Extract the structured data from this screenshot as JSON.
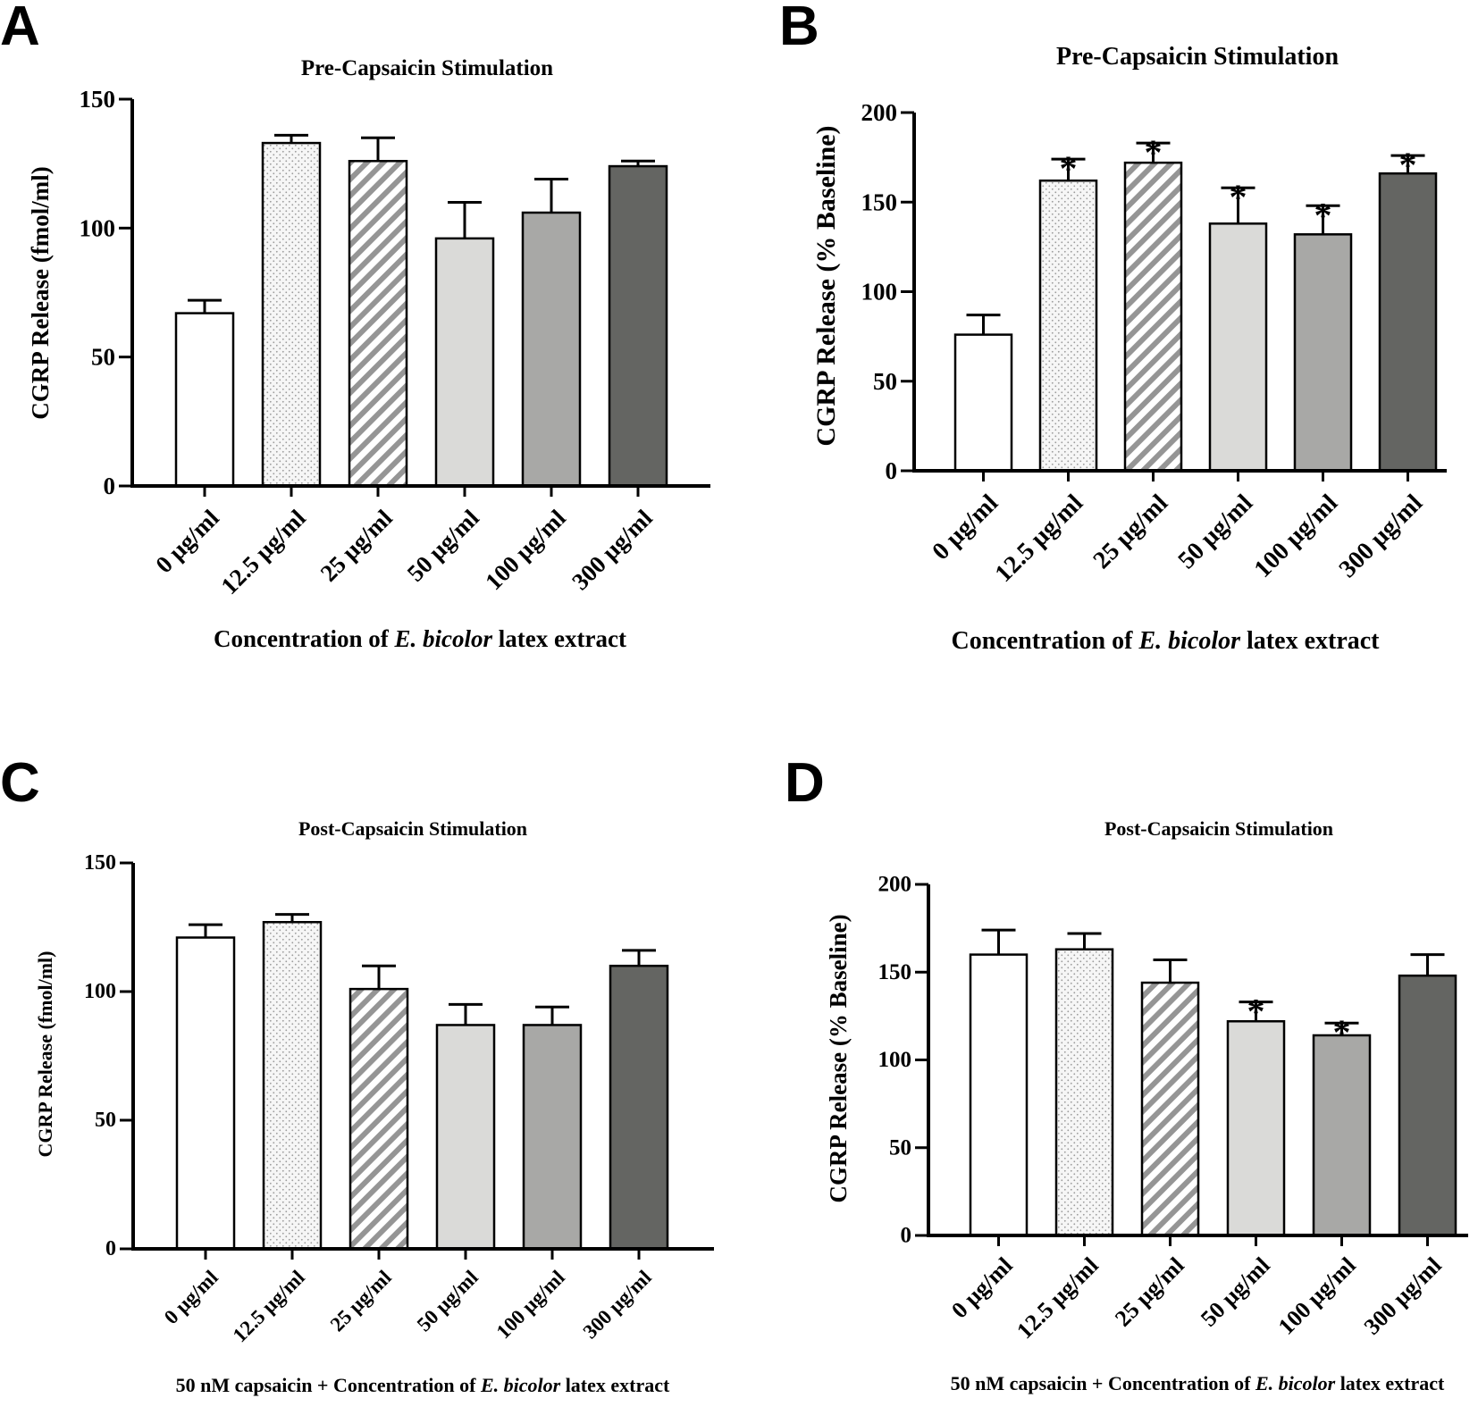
{
  "chart_data": [
    {
      "type": "bar",
      "panel_label": "A",
      "title": "Pre-Capsaicin Stimulation",
      "ylabel": "CGRP Release (fmol/ml)",
      "xlabel": {
        "pre": "Concentration of ",
        "italic": "E. bicolor",
        "post": " latex extract"
      },
      "ylim": [
        0,
        150
      ],
      "yticks": [
        "0",
        "50",
        "100",
        "150"
      ],
      "categories": [
        "0 µg/ml",
        "12.5 µg/ml",
        "25 µg/ml",
        "50 µg/ml",
        "100 µg/ml",
        "300 µg/ml"
      ],
      "values": [
        67,
        133,
        126,
        96,
        106,
        124
      ],
      "errors": [
        5,
        3,
        9,
        14,
        13,
        2
      ],
      "significance": [
        "",
        "",
        "",
        "",
        "",
        ""
      ]
    },
    {
      "type": "bar",
      "panel_label": "B",
      "title": "Pre-Capsaicin Stimulation",
      "ylabel": "CGRP Release (% Baseline)",
      "xlabel": {
        "pre": "Concentration of ",
        "italic": "E. bicolor",
        "post": " latex extract"
      },
      "ylim": [
        0,
        200
      ],
      "yticks": [
        "0",
        "50",
        "100",
        "150",
        "200"
      ],
      "categories": [
        "0 µg/ml",
        "12.5 µg/ml",
        "25 µg/ml",
        "50 µg/ml",
        "100 µg/ml",
        "300 µg/ml"
      ],
      "values": [
        76,
        162,
        172,
        138,
        132,
        166
      ],
      "errors": [
        11,
        12,
        11,
        20,
        16,
        10
      ],
      "significance": [
        "",
        "*",
        "*",
        "*",
        "*",
        "*"
      ]
    },
    {
      "type": "bar",
      "panel_label": "C",
      "title": "Post-Capsaicin Stimulation",
      "ylabel": "CGRP Release (fmol/ml)",
      "xlabel": {
        "pre": "50 nM capsaicin + Concentration of ",
        "italic": "E. bicolor",
        "post": " latex extract"
      },
      "ylim": [
        0,
        150
      ],
      "yticks": [
        "0",
        "50",
        "100",
        "150"
      ],
      "categories": [
        "0 µg/ml",
        "12.5 µg/ml",
        "25 µg/ml",
        "50 µg/ml",
        "100 µg/ml",
        "300 µg/ml"
      ],
      "values": [
        121,
        127,
        101,
        87,
        87,
        110
      ],
      "errors": [
        5,
        3,
        9,
        8,
        7,
        6
      ],
      "significance": [
        "",
        "",
        "",
        "",
        "",
        ""
      ]
    },
    {
      "type": "bar",
      "panel_label": "D",
      "title": "Post-Capsaicin Stimulation",
      "ylabel": "CGRP Release (% Baseline)",
      "xlabel": {
        "pre": "50 nM capsaicin + Concentration of ",
        "italic": "E. bicolor",
        "post": " latex extract"
      },
      "ylim": [
        0,
        200
      ],
      "yticks": [
        "0",
        "50",
        "100",
        "150",
        "200"
      ],
      "categories": [
        "0 µg/ml",
        "12.5 µg/ml",
        "25 µg/ml",
        "50 µg/ml",
        "100 µg/ml",
        "300 µg/ml"
      ],
      "values": [
        160,
        163,
        144,
        122,
        114,
        148
      ],
      "errors": [
        14,
        9,
        13,
        11,
        7,
        12
      ],
      "significance": [
        "",
        "",
        "",
        "*",
        "*",
        ""
      ]
    }
  ],
  "bar_styles": [
    {
      "fill": "#ffffff",
      "pattern": "none"
    },
    {
      "fill": "#f4f4f4",
      "pattern": "dots"
    },
    {
      "fill": "#ffffff",
      "pattern": "stripes"
    },
    {
      "fill": "#dadad8",
      "pattern": "none"
    },
    {
      "fill": "#a8a8a6",
      "pattern": "none"
    },
    {
      "fill": "#646562",
      "pattern": "none"
    }
  ]
}
